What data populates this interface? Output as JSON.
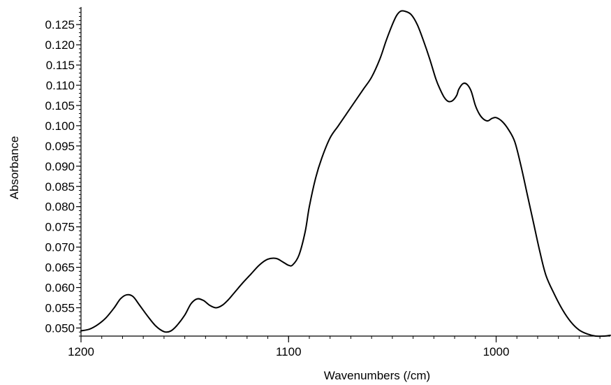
{
  "chart_data": {
    "type": "line",
    "title": "",
    "xlabel": "Wavenumbers (/cm)",
    "ylabel": "Absorbance",
    "xlim": [
      1200,
      945
    ],
    "ylim": [
      0.048,
      0.129
    ],
    "x_reversed": true,
    "grid": false,
    "x_ticks": [
      1200,
      1100,
      1000
    ],
    "x_tick_labels": [
      "1200",
      "1100",
      "1000"
    ],
    "y_ticks": [
      0.05,
      0.055,
      0.06,
      0.065,
      0.07,
      0.075,
      0.08,
      0.085,
      0.09,
      0.095,
      0.1,
      0.105,
      0.11,
      0.115,
      0.12,
      0.125
    ],
    "y_tick_labels": [
      "0.050",
      "0.055",
      "0.060",
      "0.065",
      "0.070",
      "0.075",
      "0.080",
      "0.085",
      "0.090",
      "0.095",
      "0.100",
      "0.105",
      "0.110",
      "0.115",
      "0.120",
      "0.125"
    ],
    "line_color": "#000000",
    "series": [
      {
        "x": [
          1200,
          1196,
          1192,
          1188,
          1184,
          1181,
          1178,
          1175,
          1172,
          1168,
          1164,
          1160,
          1157,
          1154,
          1150,
          1147,
          1144,
          1141,
          1138,
          1135,
          1132,
          1129,
          1126,
          1122,
          1118,
          1114,
          1110,
          1106,
          1103,
          1100,
          1098,
          1095,
          1092,
          1090,
          1087,
          1084,
          1080,
          1076,
          1072,
          1068,
          1064,
          1060,
          1056,
          1053,
          1050,
          1048,
          1046,
          1044,
          1041,
          1038,
          1035,
          1032,
          1029,
          1027,
          1025,
          1023,
          1021,
          1019,
          1018,
          1016,
          1014,
          1012,
          1010,
          1008,
          1006,
          1004,
          1002,
          1000,
          997,
          994,
          991,
          988,
          985,
          982,
          979,
          976,
          972,
          968,
          964,
          960,
          956,
          952,
          948,
          945
        ],
        "y": [
          0.0493,
          0.0497,
          0.0508,
          0.0525,
          0.055,
          0.0572,
          0.0582,
          0.0578,
          0.0558,
          0.053,
          0.0505,
          0.0491,
          0.0492,
          0.0505,
          0.0532,
          0.056,
          0.0572,
          0.0568,
          0.0556,
          0.055,
          0.0556,
          0.057,
          0.0588,
          0.0612,
          0.0634,
          0.0656,
          0.067,
          0.0672,
          0.0664,
          0.0655,
          0.0656,
          0.068,
          0.0738,
          0.08,
          0.087,
          0.092,
          0.097,
          0.1,
          0.103,
          0.106,
          0.109,
          0.112,
          0.1165,
          0.121,
          0.125,
          0.1272,
          0.1283,
          0.1283,
          0.1275,
          0.125,
          0.121,
          0.1165,
          0.1115,
          0.109,
          0.107,
          0.106,
          0.1062,
          0.1075,
          0.109,
          0.1104,
          0.1102,
          0.1085,
          0.105,
          0.1028,
          0.1016,
          0.1012,
          0.1018,
          0.102,
          0.101,
          0.099,
          0.096,
          0.09,
          0.083,
          0.076,
          0.069,
          0.063,
          0.0584,
          0.0545,
          0.0515,
          0.0495,
          0.0485,
          0.048,
          0.048,
          0.0482
        ]
      }
    ]
  }
}
